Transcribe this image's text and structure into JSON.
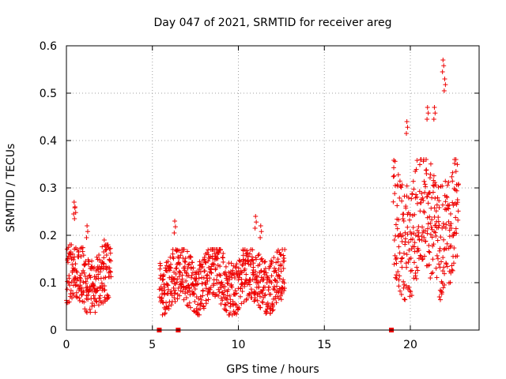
{
  "chart_data": {
    "type": "scatter",
    "title": "Day 047 of 2021, SRMTID for receiver areg",
    "xlabel": "GPS time / hours",
    "ylabel": "SRMTID / TECUs",
    "xlim": [
      0,
      24
    ],
    "ylim": [
      0,
      0.6
    ],
    "xticks": [
      0,
      5,
      10,
      15,
      20
    ],
    "xtick_labels": [
      "0",
      "5",
      "10",
      "15",
      "20"
    ],
    "yticks": [
      0,
      0.1,
      0.2,
      0.3,
      0.4,
      0.5,
      0.6
    ],
    "ytick_labels": [
      "0",
      "0.1",
      "0.2",
      "0.3",
      "0.4",
      "0.5",
      "0.6"
    ],
    "grid": true,
    "marker": "plus",
    "color": "#ee0000",
    "series": [
      {
        "name": "SRMTID",
        "segments": [
          {
            "x_start": 0.0,
            "x_end": 2.6,
            "typical_range": [
              0.04,
              0.18
            ],
            "spikes": [
              [
                0.45,
                0.27
              ],
              [
                0.5,
                0.26
              ],
              [
                1.2,
                0.22
              ],
              [
                2.2,
                0.19
              ]
            ]
          },
          {
            "x_start": 5.4,
            "x_end": 12.7,
            "typical_range": [
              0.04,
              0.17
            ],
            "spikes": [
              [
                6.3,
                0.23
              ],
              [
                11.0,
                0.24
              ],
              [
                11.3,
                0.22
              ]
            ]
          },
          {
            "x_start": 19.0,
            "x_end": 22.8,
            "typical_range": [
              0.08,
              0.36
            ],
            "spikes": [
              [
                21.0,
                0.47
              ],
              [
                21.4,
                0.47
              ],
              [
                21.9,
                0.57
              ],
              [
                22.0,
                0.53
              ],
              [
                19.8,
                0.44
              ]
            ]
          }
        ],
        "baseline_points": [
          [
            5.4,
            0.0
          ],
          [
            6.5,
            0.0
          ],
          [
            18.9,
            0.0
          ]
        ]
      }
    ]
  }
}
